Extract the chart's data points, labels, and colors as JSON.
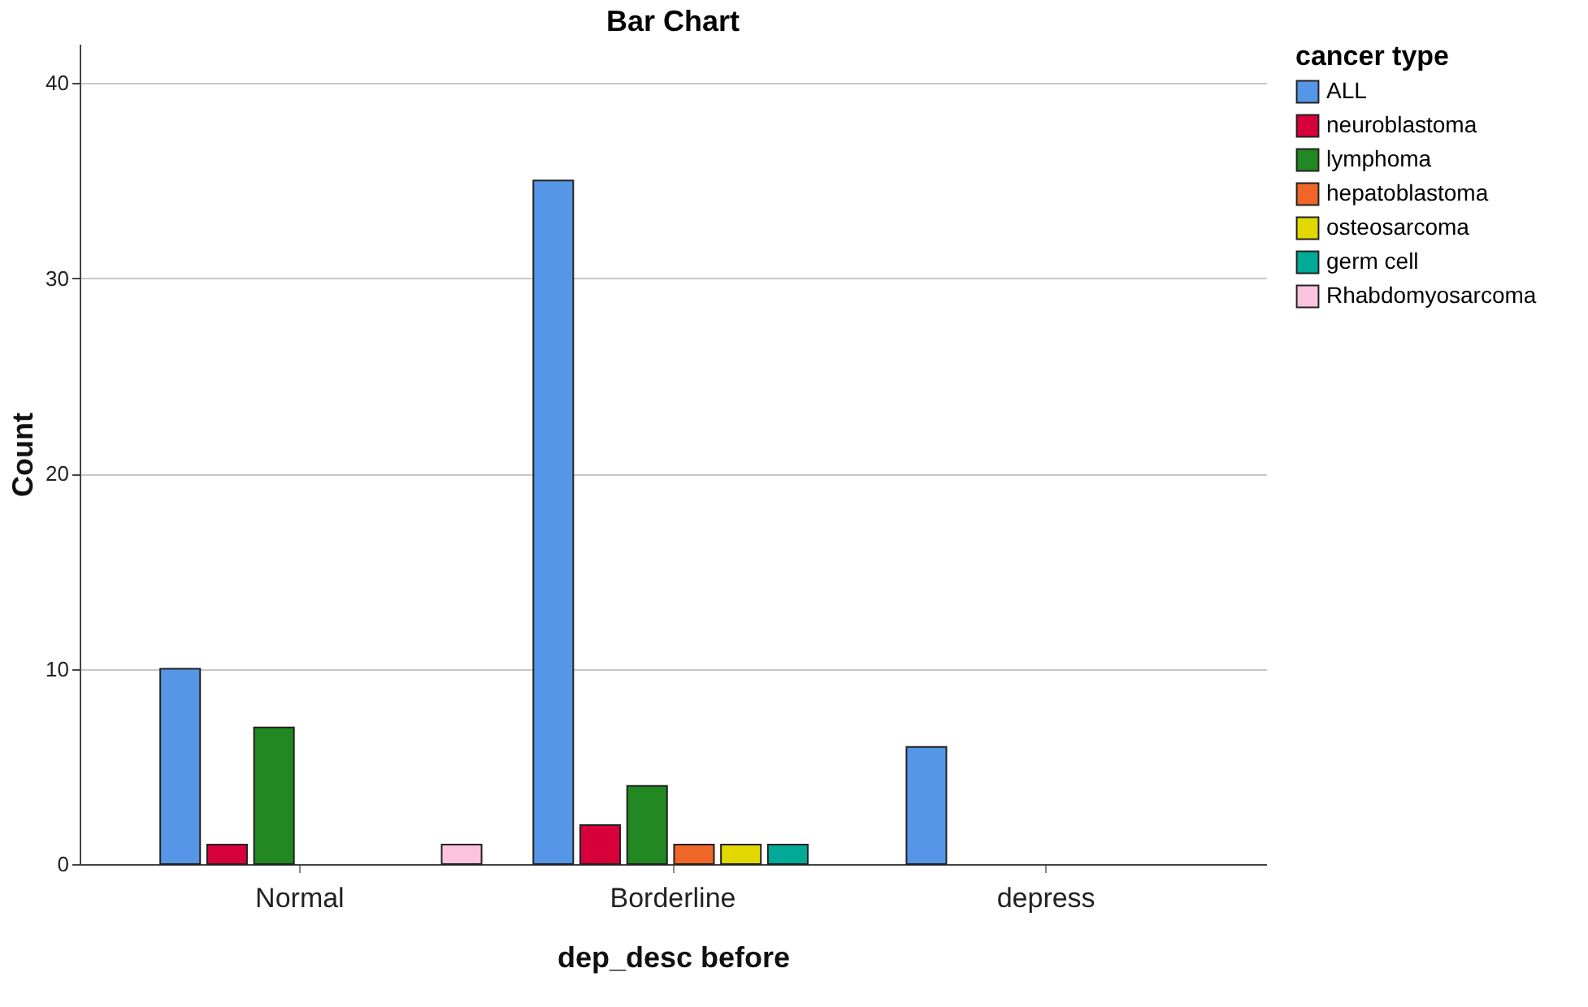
{
  "chart_data": {
    "type": "bar",
    "title": "Bar Chart",
    "xlabel": "dep_desc before",
    "ylabel": "Count",
    "legend_title": "cancer type",
    "categories": [
      "Normal",
      "Borderline",
      "depress"
    ],
    "series": [
      {
        "name": "ALL",
        "color": "#5596e6",
        "values": [
          10,
          35,
          6
        ]
      },
      {
        "name": "neuroblastoma",
        "color": "#d8003a",
        "values": [
          1,
          2,
          null
        ]
      },
      {
        "name": "lymphoma",
        "color": "#228822",
        "values": [
          7,
          4,
          null
        ]
      },
      {
        "name": "hepatoblastoma",
        "color": "#ef6628",
        "values": [
          null,
          1,
          null
        ]
      },
      {
        "name": "osteosarcoma",
        "color": "#e1d800",
        "values": [
          null,
          1,
          null
        ]
      },
      {
        "name": "germ cell",
        "color": "#01aa96",
        "values": [
          null,
          1,
          null
        ]
      },
      {
        "name": "Rhabdomyosarcoma",
        "color": "#fbc3dd",
        "values": [
          1,
          null,
          null
        ]
      }
    ],
    "ylim": [
      0,
      42
    ],
    "yticks": [
      0,
      10,
      20,
      30,
      40
    ],
    "grid": "y",
    "legend": "top right"
  }
}
